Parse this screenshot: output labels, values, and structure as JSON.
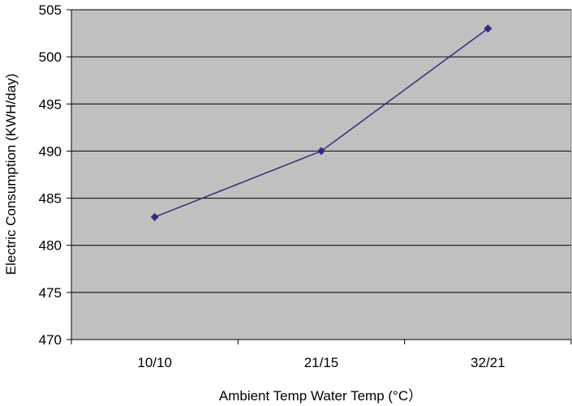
{
  "colors": {
    "plot_background": "#C0C0C0",
    "series_line": "#2E2E7A",
    "series_marker": "#2E2E7A",
    "gridline": "#000000"
  },
  "chart_data": {
    "type": "line",
    "title": "",
    "xlabel": "Ambient Temp Water Temp (°C）",
    "ylabel": "Electric Consumption (KWH/day)",
    "categories": [
      "10/10",
      "21/15",
      "32/21"
    ],
    "series": [
      {
        "values": [
          483,
          490,
          503
        ],
        "marker": "diamond"
      }
    ],
    "ylim": [
      470,
      505
    ],
    "yticks": [
      470,
      475,
      480,
      485,
      490,
      495,
      500,
      505
    ],
    "grid": true,
    "legend": "none"
  }
}
